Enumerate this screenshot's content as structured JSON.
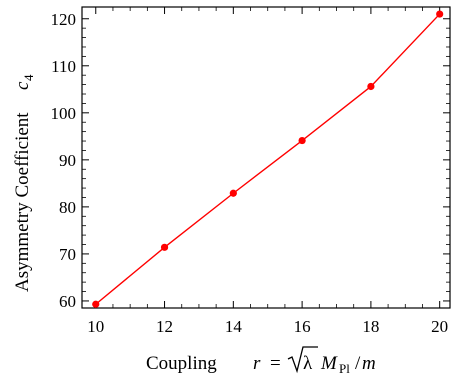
{
  "chart_data": {
    "type": "line",
    "xlabel": "Coupling",
    "xlabel_math": {
      "var": "r",
      "eq": "=",
      "lambda": "λ",
      "M": "M",
      "sub": "Pl",
      "slash": "/",
      "m": "m"
    },
    "ylabel": "Asymmetry Coefficient",
    "ylabel_math": {
      "var": "c",
      "sub": "4"
    },
    "xlim": [
      9.6,
      20.3
    ],
    "ylim": [
      58.5,
      122.5
    ],
    "x_ticks": [
      10,
      12,
      14,
      16,
      18,
      20
    ],
    "y_ticks": [
      60,
      70,
      80,
      90,
      100,
      110,
      120
    ],
    "grid": false,
    "series": [
      {
        "color": "#ff0000",
        "x": [
          10,
          12,
          14,
          16,
          18,
          20
        ],
        "y": [
          59.3,
          71.4,
          82.9,
          94.1,
          105.6,
          121.0
        ]
      }
    ]
  }
}
